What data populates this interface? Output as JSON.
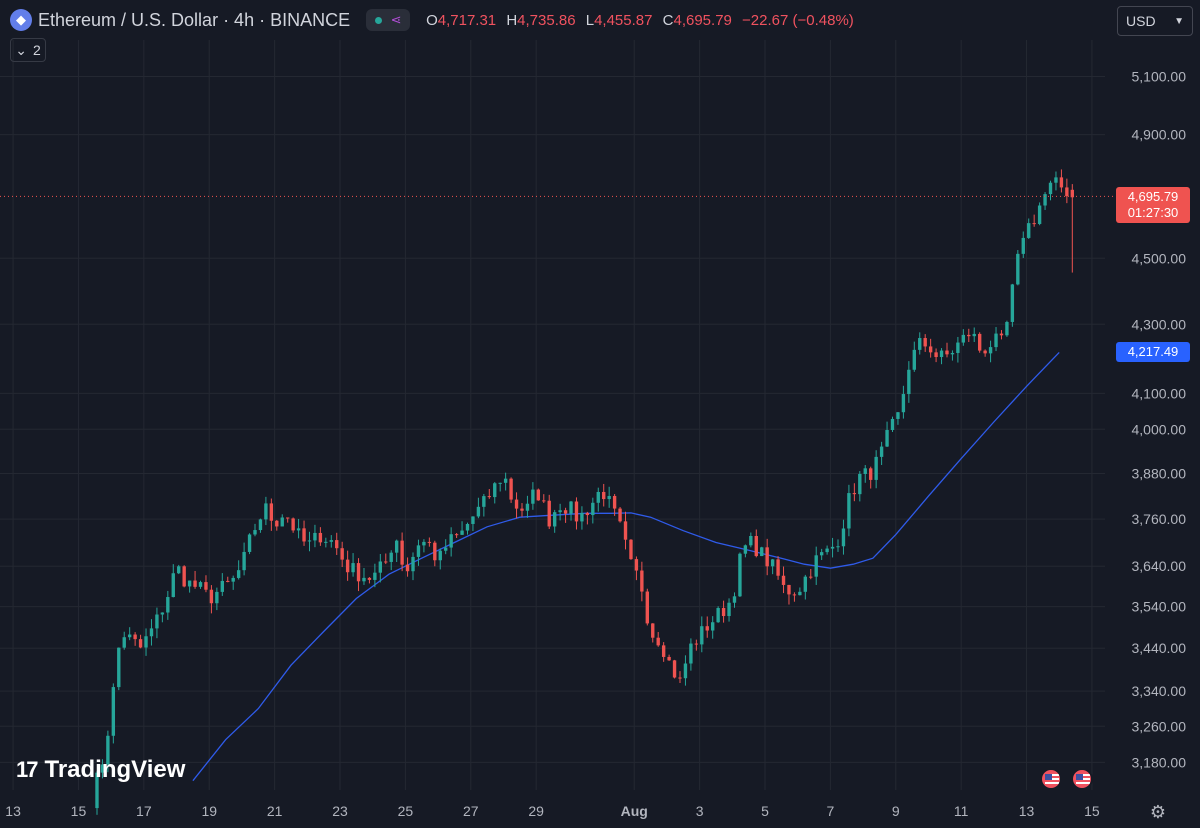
{
  "header": {
    "symbol": "Ethereum / U.S. Dollar · 4h · BINANCE",
    "ohlc": [
      {
        "k": "O",
        "v": "4,717.31"
      },
      {
        "k": "H",
        "v": "4,735.86"
      },
      {
        "k": "L",
        "v": "4,455.87"
      },
      {
        "k": "C",
        "v": "4,695.79"
      }
    ],
    "change": "−22.67 (−0.48%)",
    "indicators_count": "2",
    "currency": "USD"
  },
  "watermark": "TradingView",
  "colors": {
    "background": "#161a25",
    "grid": "#242832",
    "up": "#26a69a",
    "down": "#ef5350",
    "ma": "#2f5bea",
    "text": "#d1d4dc",
    "axis_text": "#b2b5be"
  },
  "chart_data": {
    "type": "candlestick",
    "interval": "4h",
    "x_tick_labels": [
      "13",
      "15",
      "17",
      "19",
      "21",
      "23",
      "25",
      "27",
      "29",
      "Aug",
      "3",
      "5",
      "7",
      "9",
      "11",
      "13",
      "15"
    ],
    "y_tick_labels": [
      "5,100.00",
      "4,900.00",
      "4,500.00",
      "4,300.00",
      "4,100.00",
      "4,000.00",
      "3,880.00",
      "3,760.00",
      "3,640.00",
      "3,540.00",
      "3,440.00",
      "3,340.00",
      "3,260.00",
      "3,180.00"
    ],
    "y_ticks": [
      5100,
      4900,
      4500,
      4300,
      4100,
      4000,
      3880,
      3760,
      3640,
      3540,
      3440,
      3340,
      3260,
      3180
    ],
    "y_scale": "log",
    "ylim": [
      3120,
      5230
    ],
    "last_price": {
      "value": 4695.79,
      "label": "4,695.79",
      "countdown": "01:27:30"
    },
    "ma_last": {
      "value": 4217.49,
      "label": "4,217.49"
    },
    "anchors": [
      [
        15.4,
        3100
      ],
      [
        15.8,
        3200
      ],
      [
        16.0,
        3300
      ],
      [
        16.3,
        3480
      ],
      [
        16.6,
        3460
      ],
      [
        16.9,
        3440
      ],
      [
        17.3,
        3490
      ],
      [
        17.7,
        3560
      ],
      [
        18.0,
        3640
      ],
      [
        18.3,
        3600
      ],
      [
        18.7,
        3585
      ],
      [
        19.0,
        3560
      ],
      [
        19.3,
        3580
      ],
      [
        19.7,
        3600
      ],
      [
        20.0,
        3640
      ],
      [
        20.3,
        3720
      ],
      [
        20.7,
        3790
      ],
      [
        21.0,
        3750
      ],
      [
        21.3,
        3780
      ],
      [
        21.7,
        3720
      ],
      [
        22.0,
        3690
      ],
      [
        22.4,
        3720
      ],
      [
        22.8,
        3700
      ],
      [
        23.2,
        3640
      ],
      [
        23.6,
        3620
      ],
      [
        24.0,
        3610
      ],
      [
        24.4,
        3650
      ],
      [
        24.7,
        3720
      ],
      [
        25.0,
        3620
      ],
      [
        25.4,
        3700
      ],
      [
        25.7,
        3700
      ],
      [
        26.0,
        3650
      ],
      [
        26.3,
        3700
      ],
      [
        26.7,
        3720
      ],
      [
        27.0,
        3760
      ],
      [
        27.4,
        3800
      ],
      [
        27.7,
        3840
      ],
      [
        28.0,
        3880
      ],
      [
        28.3,
        3800
      ],
      [
        28.7,
        3780
      ],
      [
        29.0,
        3840
      ],
      [
        29.4,
        3760
      ],
      [
        29.7,
        3800
      ],
      [
        30.0,
        3790
      ],
      [
        30.3,
        3760
      ],
      [
        30.7,
        3800
      ],
      [
        31.0,
        3840
      ],
      [
        31.3,
        3790
      ],
      [
        31.6,
        3730
      ],
      [
        31.9,
        3640
      ],
      [
        32.2,
        3600
      ],
      [
        32.5,
        3480
      ],
      [
        32.8,
        3460
      ],
      [
        33.1,
        3400
      ],
      [
        33.4,
        3360
      ],
      [
        33.7,
        3440
      ],
      [
        34.0,
        3470
      ],
      [
        34.3,
        3500
      ],
      [
        34.7,
        3530
      ],
      [
        35.0,
        3560
      ],
      [
        35.3,
        3680
      ],
      [
        35.6,
        3700
      ],
      [
        36.0,
        3660
      ],
      [
        36.3,
        3630
      ],
      [
        36.6,
        3580
      ],
      [
        37.0,
        3580
      ],
      [
        37.3,
        3620
      ],
      [
        37.6,
        3660
      ],
      [
        38.0,
        3680
      ],
      [
        38.3,
        3720
      ],
      [
        38.6,
        3820
      ],
      [
        38.9,
        3870
      ],
      [
        39.2,
        3880
      ],
      [
        39.5,
        3920
      ],
      [
        39.8,
        3990
      ],
      [
        40.1,
        4040
      ],
      [
        40.4,
        4180
      ],
      [
        40.7,
        4240
      ],
      [
        41.0,
        4240
      ],
      [
        41.3,
        4200
      ],
      [
        41.6,
        4210
      ],
      [
        42.0,
        4250
      ],
      [
        42.3,
        4280
      ],
      [
        42.6,
        4220
      ],
      [
        43.0,
        4250
      ],
      [
        43.3,
        4240
      ],
      [
        43.6,
        4420
      ],
      [
        43.9,
        4580
      ],
      [
        44.2,
        4620
      ],
      [
        44.5,
        4690
      ],
      [
        44.8,
        4735
      ],
      [
        45.0,
        4730
      ],
      [
        45.2,
        4718
      ],
      [
        45.4,
        4696
      ]
    ],
    "ma_anchors": [
      [
        18.5,
        3140
      ],
      [
        19.5,
        3230
      ],
      [
        20.5,
        3300
      ],
      [
        21.5,
        3400
      ],
      [
        22.5,
        3480
      ],
      [
        23.5,
        3560
      ],
      [
        24.5,
        3620
      ],
      [
        25.5,
        3660
      ],
      [
        26.5,
        3700
      ],
      [
        27.5,
        3740
      ],
      [
        28.5,
        3765
      ],
      [
        29.5,
        3770
      ],
      [
        30.5,
        3775
      ],
      [
        31.3,
        3775
      ],
      [
        31.9,
        3776
      ],
      [
        32.5,
        3765
      ],
      [
        33.5,
        3730
      ],
      [
        34.5,
        3700
      ],
      [
        35.5,
        3680
      ],
      [
        36.5,
        3660
      ],
      [
        37.2,
        3645
      ],
      [
        38.0,
        3635
      ],
      [
        38.7,
        3645
      ],
      [
        39.3,
        3660
      ],
      [
        40.0,
        3720
      ],
      [
        41.0,
        3820
      ],
      [
        42.0,
        3920
      ],
      [
        43.0,
        4020
      ],
      [
        44.0,
        4120
      ],
      [
        45.0,
        4217.49
      ]
    ],
    "x_range": [
      12.6,
      46.4
    ]
  }
}
